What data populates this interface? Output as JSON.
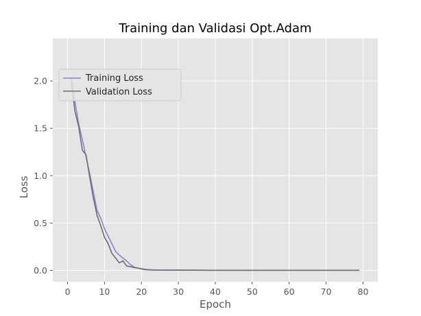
{
  "chart_data": {
    "type": "line",
    "title": "Training dan Validasi Opt.Adam",
    "xlabel": "Epoch",
    "ylabel": "Loss",
    "xlim": [
      -4,
      84
    ],
    "ylim": [
      -0.12,
      2.45
    ],
    "xticks": [
      0,
      10,
      20,
      30,
      40,
      50,
      60,
      70,
      80
    ],
    "yticks": [
      0.0,
      0.5,
      1.0,
      1.5,
      2.0
    ],
    "xtick_labels": [
      "0",
      "10",
      "20",
      "30",
      "40",
      "50",
      "60",
      "70",
      "80"
    ],
    "ytick_labels": [
      "0.0",
      "0.5",
      "1.0",
      "1.5",
      "2.0"
    ],
    "grid": true,
    "legend_position": "upper-left",
    "series": [
      {
        "name": "Training Loss",
        "color": "#8b7fd6",
        "x": [
          1,
          2,
          3,
          4,
          5,
          6,
          7,
          8,
          9,
          10,
          11,
          12,
          13,
          14,
          15,
          16,
          17,
          18,
          19,
          20,
          21,
          22,
          23,
          24,
          25,
          30,
          40,
          50,
          60,
          70,
          79
        ],
        "y": [
          2.05,
          1.78,
          1.55,
          1.38,
          1.2,
          1.02,
          0.82,
          0.63,
          0.55,
          0.44,
          0.36,
          0.28,
          0.2,
          0.16,
          0.13,
          0.1,
          0.06,
          0.035,
          0.025,
          0.018,
          0.012,
          0.008,
          0.005,
          0.004,
          0.003,
          0.002,
          0.001,
          0.001,
          0.001,
          0.001,
          0.001
        ]
      },
      {
        "name": "Validation Loss",
        "color": "#6e6e6e",
        "x": [
          1,
          2,
          3,
          4,
          5,
          6,
          7,
          8,
          9,
          10,
          11,
          12,
          13,
          14,
          15,
          16,
          17,
          18,
          19,
          20,
          21,
          22,
          23,
          24,
          25,
          30,
          40,
          50,
          60,
          70,
          79
        ],
        "y": [
          2.0,
          1.68,
          1.52,
          1.27,
          1.22,
          0.98,
          0.76,
          0.58,
          0.47,
          0.35,
          0.28,
          0.18,
          0.13,
          0.08,
          0.1,
          0.045,
          0.04,
          0.03,
          0.025,
          0.015,
          0.008,
          0.005,
          0.004,
          0.003,
          0.003,
          0.002,
          0.001,
          0.001,
          0.001,
          0.001,
          0.001
        ]
      }
    ]
  }
}
